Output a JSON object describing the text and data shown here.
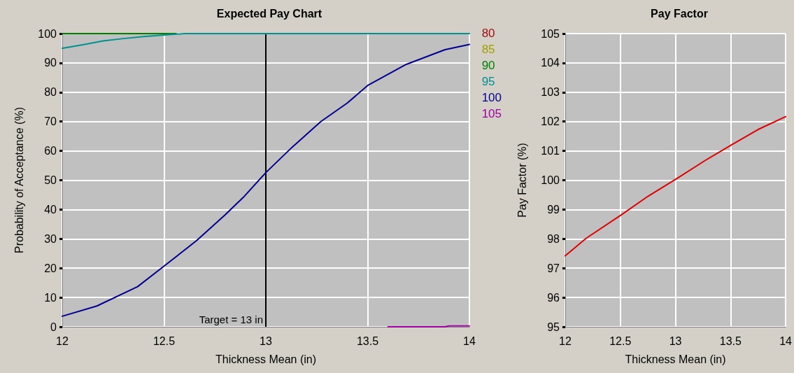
{
  "chart_data": [
    {
      "type": "line",
      "title": "Expected Pay Chart",
      "xlabel": "Thickness Mean (in)",
      "ylabel": "Probability of Acceptance (%)",
      "xlim": [
        12,
        14
      ],
      "xticks": [
        12,
        12.5,
        13,
        13.5,
        14
      ],
      "ylim": [
        0,
        100
      ],
      "yticks": [
        0,
        10,
        20,
        30,
        40,
        50,
        60,
        70,
        80,
        90,
        100
      ],
      "grid": true,
      "legend": "right",
      "marker": "none",
      "line_style": "solid",
      "ref_lines": [
        {
          "axis": "x",
          "value": 13,
          "label": "Target = 13 in",
          "color": "#000000"
        }
      ],
      "series": [
        {
          "name": "80",
          "color": "#a01010"
        },
        {
          "name": "85",
          "color": "#a0a000"
        },
        {
          "name": "90",
          "color": "#008000",
          "x": [
            12,
            12.56
          ],
          "values": [
            100,
            100
          ]
        },
        {
          "name": "95",
          "color": "#009090",
          "x": [
            12,
            12.1,
            12.2,
            12.3,
            12.4,
            12.5,
            12.6,
            14
          ],
          "values": [
            95,
            96.2,
            97.5,
            98.3,
            99,
            99.5,
            100,
            100
          ]
        },
        {
          "name": "100",
          "color": "#000090",
          "x": [
            12,
            12.17,
            12.37,
            12.5,
            12.66,
            12.8,
            12.89,
            13,
            13.13,
            13.27,
            13.4,
            13.5,
            13.69,
            13.88,
            14
          ],
          "values": [
            3.6,
            7.1,
            13.7,
            20.7,
            29.4,
            38.2,
            44.2,
            52.6,
            61.3,
            70,
            76.3,
            82.3,
            89.5,
            94.5,
            96.3
          ]
        },
        {
          "name": "105",
          "color": "#a000a0",
          "x": [
            13.6,
            13.88,
            13.9,
            14
          ],
          "values": [
            0,
            0,
            0.3,
            0.3
          ]
        }
      ]
    },
    {
      "type": "line",
      "title": "Pay Factor",
      "xlabel": "Thickness Mean (in)",
      "ylabel": "Pay Factor (%)",
      "xlim": [
        12,
        14
      ],
      "xticks": [
        12,
        12.5,
        13,
        13.5,
        14
      ],
      "ylim": [
        95,
        105
      ],
      "yticks": [
        95,
        96,
        97,
        98,
        99,
        100,
        101,
        102,
        103,
        104,
        105
      ],
      "grid": true,
      "marker": "none",
      "line_style": "solid",
      "series": [
        {
          "color": "#e00000",
          "x": [
            12,
            12.19,
            12.51,
            12.75,
            13.01,
            13.26,
            13.51,
            13.75,
            14
          ],
          "values": [
            97.42,
            98.02,
            98.82,
            99.45,
            100.05,
            100.65,
            101.21,
            101.73,
            102.17
          ]
        }
      ]
    }
  ]
}
